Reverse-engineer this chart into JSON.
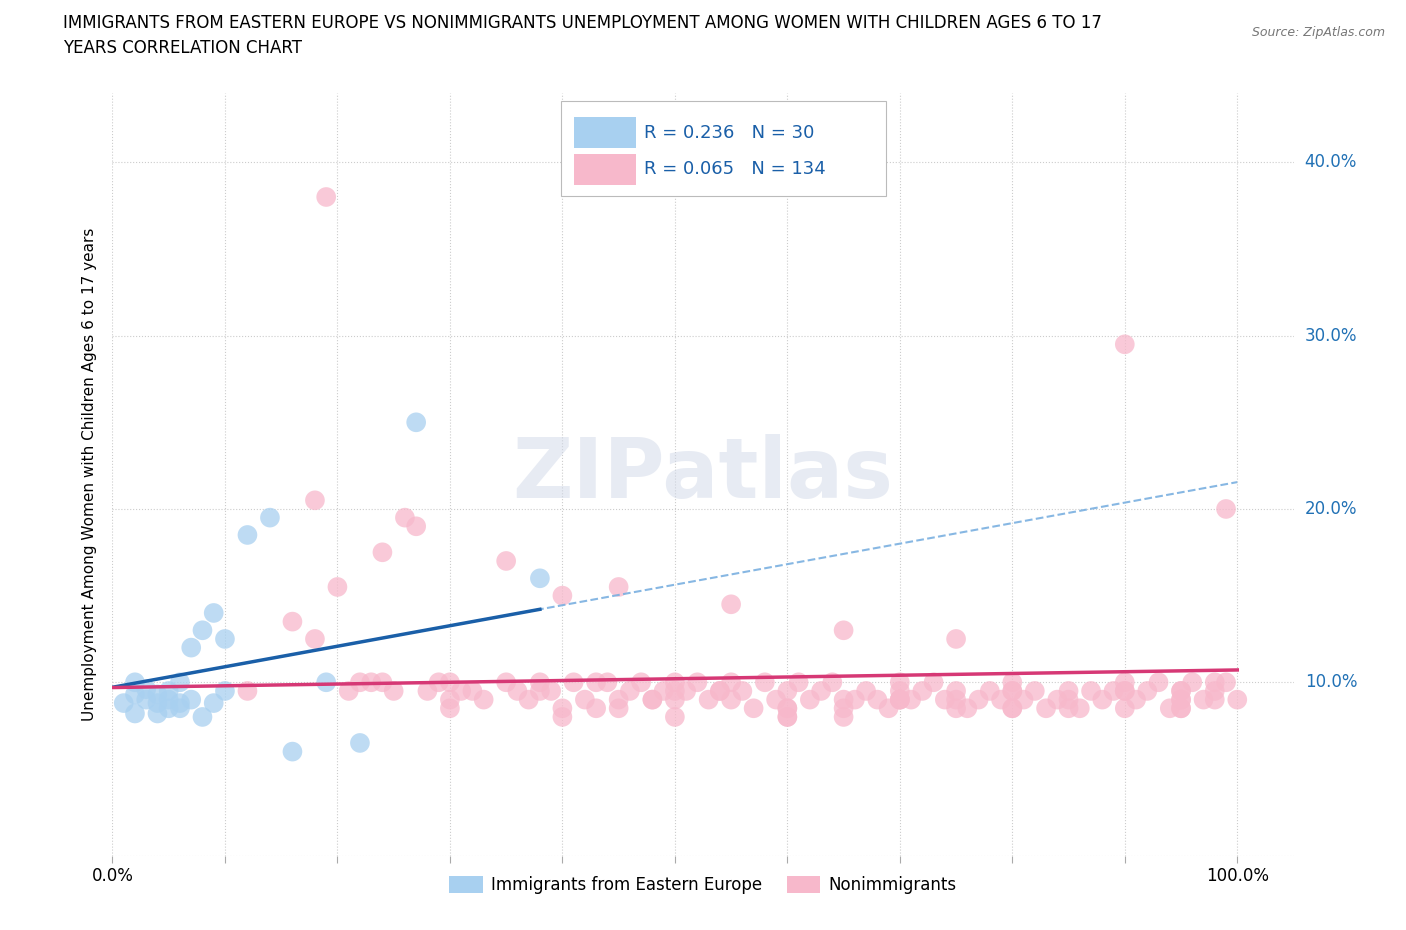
{
  "title_line1": "IMMIGRANTS FROM EASTERN EUROPE VS NONIMMIGRANTS UNEMPLOYMENT AMONG WOMEN WITH CHILDREN AGES 6 TO 17",
  "title_line2": "YEARS CORRELATION CHART",
  "source": "Source: ZipAtlas.com",
  "ylabel": "Unemployment Among Women with Children Ages 6 to 17 years",
  "xlim": [
    0.0,
    1.05
  ],
  "ylim": [
    0.0,
    0.44
  ],
  "blue_R": 0.236,
  "blue_N": 30,
  "pink_R": 0.065,
  "pink_N": 134,
  "blue_color": "#a8d0f0",
  "pink_color": "#f7b8cb",
  "blue_line_color": "#1a5fa8",
  "pink_line_color": "#d63875",
  "dash_line_color": "#7ab0e0",
  "watermark": "ZIPatlas",
  "legend_label_blue": "Immigrants from Eastern Europe",
  "legend_label_pink": "Nonimmigrants",
  "blue_x": [
    0.01,
    0.02,
    0.02,
    0.02,
    0.03,
    0.03,
    0.04,
    0.04,
    0.04,
    0.05,
    0.05,
    0.05,
    0.06,
    0.06,
    0.06,
    0.07,
    0.07,
    0.08,
    0.08,
    0.09,
    0.09,
    0.1,
    0.1,
    0.12,
    0.14,
    0.16,
    0.19,
    0.22,
    0.27,
    0.38
  ],
  "blue_y": [
    0.088,
    0.093,
    0.082,
    0.1,
    0.09,
    0.096,
    0.088,
    0.093,
    0.082,
    0.09,
    0.085,
    0.095,
    0.088,
    0.085,
    0.1,
    0.09,
    0.12,
    0.08,
    0.13,
    0.14,
    0.088,
    0.125,
    0.095,
    0.185,
    0.195,
    0.06,
    0.1,
    0.065,
    0.25,
    0.16
  ],
  "pink_x": [
    0.12,
    0.16,
    0.18,
    0.2,
    0.21,
    0.22,
    0.23,
    0.25,
    0.26,
    0.27,
    0.28,
    0.29,
    0.3,
    0.31,
    0.32,
    0.33,
    0.35,
    0.36,
    0.37,
    0.38,
    0.39,
    0.4,
    0.41,
    0.42,
    0.43,
    0.44,
    0.45,
    0.46,
    0.47,
    0.48,
    0.49,
    0.5,
    0.51,
    0.52,
    0.53,
    0.54,
    0.55,
    0.56,
    0.57,
    0.58,
    0.59,
    0.6,
    0.61,
    0.62,
    0.63,
    0.64,
    0.65,
    0.66,
    0.67,
    0.68,
    0.69,
    0.7,
    0.71,
    0.72,
    0.73,
    0.74,
    0.75,
    0.76,
    0.77,
    0.78,
    0.79,
    0.8,
    0.81,
    0.82,
    0.83,
    0.84,
    0.85,
    0.86,
    0.87,
    0.88,
    0.89,
    0.9,
    0.91,
    0.92,
    0.93,
    0.94,
    0.95,
    0.96,
    0.97,
    0.98,
    0.99,
    1.0,
    0.19,
    0.24,
    0.3,
    0.38,
    0.43,
    0.48,
    0.54,
    0.6,
    0.65,
    0.7,
    0.75,
    0.8,
    0.85,
    0.9,
    0.95,
    0.98,
    0.45,
    0.55,
    0.65,
    0.75,
    0.85,
    0.95,
    0.4,
    0.5,
    0.6,
    0.7,
    0.8,
    0.9,
    0.95,
    0.98,
    0.5,
    0.6,
    0.7,
    0.8,
    0.9,
    0.95,
    0.3,
    0.4,
    0.5,
    0.6,
    0.7,
    0.8,
    0.9,
    0.95,
    0.99,
    0.18,
    0.24,
    0.35,
    0.45,
    0.55,
    0.65,
    0.75
  ],
  "pink_y": [
    0.095,
    0.135,
    0.125,
    0.155,
    0.095,
    0.1,
    0.1,
    0.095,
    0.195,
    0.19,
    0.095,
    0.1,
    0.1,
    0.095,
    0.095,
    0.09,
    0.1,
    0.095,
    0.09,
    0.1,
    0.095,
    0.15,
    0.1,
    0.09,
    0.1,
    0.1,
    0.09,
    0.095,
    0.1,
    0.09,
    0.095,
    0.1,
    0.095,
    0.1,
    0.09,
    0.095,
    0.1,
    0.095,
    0.085,
    0.1,
    0.09,
    0.095,
    0.1,
    0.09,
    0.095,
    0.1,
    0.085,
    0.09,
    0.095,
    0.09,
    0.085,
    0.1,
    0.09,
    0.095,
    0.1,
    0.09,
    0.095,
    0.085,
    0.09,
    0.095,
    0.09,
    0.1,
    0.09,
    0.095,
    0.085,
    0.09,
    0.095,
    0.085,
    0.095,
    0.09,
    0.095,
    0.1,
    0.09,
    0.095,
    0.1,
    0.085,
    0.095,
    0.1,
    0.09,
    0.095,
    0.1,
    0.09,
    0.38,
    0.1,
    0.09,
    0.095,
    0.085,
    0.09,
    0.095,
    0.085,
    0.09,
    0.095,
    0.085,
    0.095,
    0.09,
    0.095,
    0.085,
    0.1,
    0.085,
    0.09,
    0.08,
    0.09,
    0.085,
    0.095,
    0.085,
    0.09,
    0.08,
    0.09,
    0.085,
    0.095,
    0.085,
    0.09,
    0.08,
    0.085,
    0.09,
    0.085,
    0.295,
    0.09,
    0.085,
    0.08,
    0.095,
    0.08,
    0.09,
    0.095,
    0.085,
    0.09,
    0.2,
    0.205,
    0.175,
    0.17,
    0.155,
    0.145,
    0.13,
    0.125
  ]
}
